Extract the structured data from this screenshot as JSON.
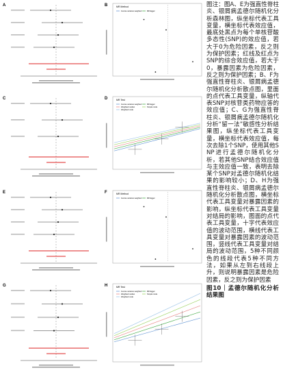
{
  "panels": [
    {
      "letter": "A",
      "legend_title": null
    },
    {
      "letter": "B",
      "legend_title": "MR Method",
      "legend_items": [
        "Inverse variance weighted",
        "MR Egger"
      ]
    },
    {
      "letter": "C",
      "legend_title": null
    },
    {
      "letter": "D",
      "legend_title": "MR Test",
      "legend_items": [
        "Inverse variance weighted",
        "MR Egger",
        "Weighted median",
        "Simple mode",
        "Weighted mode"
      ]
    },
    {
      "letter": "E",
      "legend_title": null
    },
    {
      "letter": "F",
      "legend_title": "MR Method",
      "legend_items": [
        "Inverse variance weighted",
        "MR Egger"
      ]
    },
    {
      "letter": "G",
      "legend_title": null
    },
    {
      "letter": "H",
      "legend_title": "MR Test",
      "legend_items": [
        "Inverse variance weighted",
        "MR Egger",
        "Weighted median",
        "Simple mode",
        "Weighted mode"
      ]
    }
  ],
  "caption": {
    "text": "图注：图A、E为强直性脊柱炎、银屑病孟德尔随机化分析森林图，纵坐标代表工具变量，横坐标代表效应值，最底处黑点为每个单核苷酸多态性(SNP)的效应值，若大于0为危险因素，反之则为保护因素；红线及红点为SNP的综合效应值，若大于0，暴露因素为危险因素，反之则为保护因素；B、F为强直性脊柱炎、银屑病孟德尔随机化分析散点图，里面的点代表工具变量，纵轴代表SNP对核苷类药物应答的效应值；C、G为强直性脊柱炎、银屑病孟德尔随机化分析“留一法”敏感性分析结果图，纵坐标代表工具变量，横坐标代表效应值，每次去除1个SNP，使用其他SNP进行孟德尔随机化分析，若其他SNP结合效应值与主效应值一致，表明去除某个SNP对孟德尔随机化结果的影响较小；D、H为强直性脊柱炎、银屑病孟德尔随机化分析散点图，横坐标代表工具变量对暴露因素的影响，纵坐标代表工具变量对结局的影响，图面的点代表工具变量，十字代表效应值的波动范围，横线代表工具变量对暴露因素的波动范围，竖线代表工具变量对结局的波动范围，5种不同颜色的线段代表5种不同方法，如果从左到右线段上升，则说明暴露因素是危险因素，反之则为保护因素",
    "figure_title": "图10｜孟德尔随机化分析结果图"
  }
}
